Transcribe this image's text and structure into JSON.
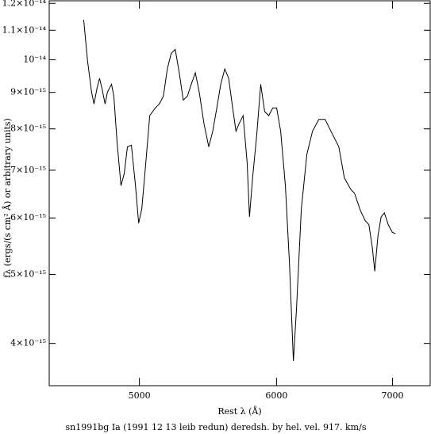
{
  "chart_data": {
    "type": "line",
    "caption": "sn1991bg Ia (1991 12 13 leib redun) deredsh. by hel. vel.   917. km/s",
    "x_label": "Rest λ (Å)",
    "y_label": "fλ (ergs/(s cm² Å) or arbitrary units)",
    "xscale": "log",
    "yscale": "log",
    "color": "#000000",
    "xlim": [
      4435,
      7360
    ],
    "xticks": [
      5000,
      6000,
      7000
    ],
    "ylim": [
      3.49e-15,
      1.21e-14
    ],
    "yticks": [
      {
        "value": 1.2e-14,
        "label": "1.2×10⁻¹⁴"
      },
      {
        "value": 1.1e-14,
        "label": "1.1×10⁻¹⁴"
      },
      {
        "value": 1e-14,
        "label": "10⁻¹⁴"
      },
      {
        "value": 9e-15,
        "label": "9×10⁻¹⁵"
      },
      {
        "value": 8e-15,
        "label": "8×10⁻¹⁵"
      },
      {
        "value": 7e-15,
        "label": "7×10⁻¹⁵"
      },
      {
        "value": 6e-15,
        "label": "6×10⁻¹⁵"
      },
      {
        "value": 5e-15,
        "label": "5×10⁻¹⁵"
      },
      {
        "value": 4e-15,
        "label": "4×10⁻¹⁵"
      }
    ],
    "x": [
      4643,
      4667,
      4692,
      4707,
      4726,
      4742,
      4757,
      4777,
      4792,
      4818,
      4833,
      4854,
      4879,
      4900,
      4921,
      4947,
      4974,
      4995,
      5016,
      5043,
      5069,
      5107,
      5134,
      5162,
      5189,
      5216,
      5244,
      5272,
      5300,
      5329,
      5357,
      5386,
      5414,
      5448,
      5483,
      5512,
      5542,
      5571,
      5601,
      5630,
      5660,
      5685,
      5709,
      5739,
      5770,
      5788,
      5812,
      5844,
      5875,
      5906,
      5938,
      5970,
      6001,
      6033,
      6071,
      6104,
      6136,
      6161,
      6201,
      6247,
      6294,
      6347,
      6400,
      6450,
      6518,
      6566,
      6622,
      6655,
      6707,
      6750,
      6784,
      6815,
      6837,
      6866,
      6895,
      6925,
      6961,
      6998,
      7028
    ],
    "values": [
      1.138e-14,
      9.96e-15,
      9.01e-15,
      8.67e-15,
      9.12e-15,
      9.42e-15,
      9.12e-15,
      8.67e-15,
      9.01e-15,
      9.24e-15,
      8.89e-15,
      7.65e-15,
      6.66e-15,
      6.92e-15,
      7.55e-15,
      7.59e-15,
      6.66e-15,
      5.9e-15,
      6.18e-15,
      7.18e-15,
      8.35e-15,
      8.56e-15,
      8.67e-15,
      8.89e-15,
      9.71e-15,
      1.021e-14,
      1.034e-14,
      9.59e-15,
      8.78e-15,
      8.89e-15,
      9.24e-15,
      9.59e-15,
      9.01e-15,
      8.14e-15,
      7.55e-15,
      7.94e-15,
      8.56e-15,
      9.24e-15,
      9.71e-15,
      9.42e-15,
      8.56e-15,
      7.94e-15,
      8.14e-15,
      8.35e-15,
      7.18e-15,
      6.02e-15,
      6.83e-15,
      7.84e-15,
      9.24e-15,
      8.46e-15,
      8.35e-15,
      8.56e-15,
      8.56e-15,
      7.94e-15,
      6.66e-15,
      5.18e-15,
      3.78e-15,
      4.46e-15,
      6.18e-15,
      7.37e-15,
      7.94e-15,
      8.25e-15,
      8.25e-15,
      7.94e-15,
      7.55e-15,
      6.83e-15,
      6.58e-15,
      6.5e-15,
      6.15e-15,
      5.95e-15,
      5.87e-15,
      5.45e-15,
      5.05e-15,
      5.66e-15,
      6.02e-15,
      6.1e-15,
      5.87e-15,
      5.73e-15,
      5.7e-15
    ]
  }
}
